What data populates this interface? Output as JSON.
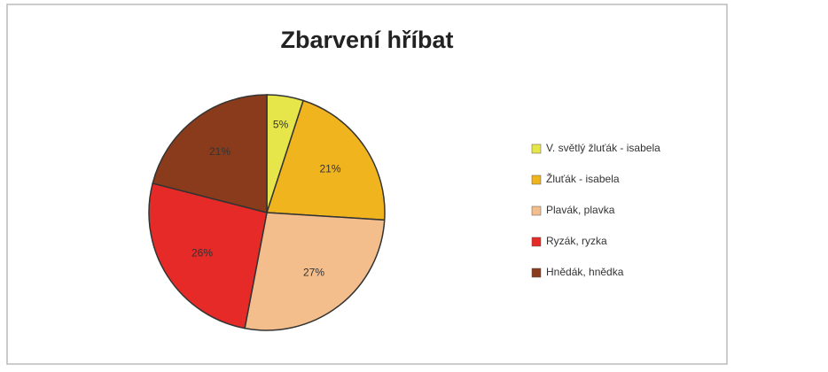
{
  "chart_data": {
    "type": "pie",
    "title": "Zbarvení hříbat",
    "categories": [
      "V. světlý žluťák - isabela",
      "Žluťák - isabela",
      "Plavák, plavka",
      "Ryzák, ryzka",
      "Hnědák, hnědka"
    ],
    "values": [
      5,
      21,
      27,
      26,
      21
    ],
    "value_labels": [
      "5%",
      "21%",
      "27%",
      "26%",
      "21%"
    ],
    "colors": [
      "#e6e64a",
      "#f0b51e",
      "#f4be8c",
      "#e62a27",
      "#8a3b1c"
    ],
    "legend": "right"
  }
}
